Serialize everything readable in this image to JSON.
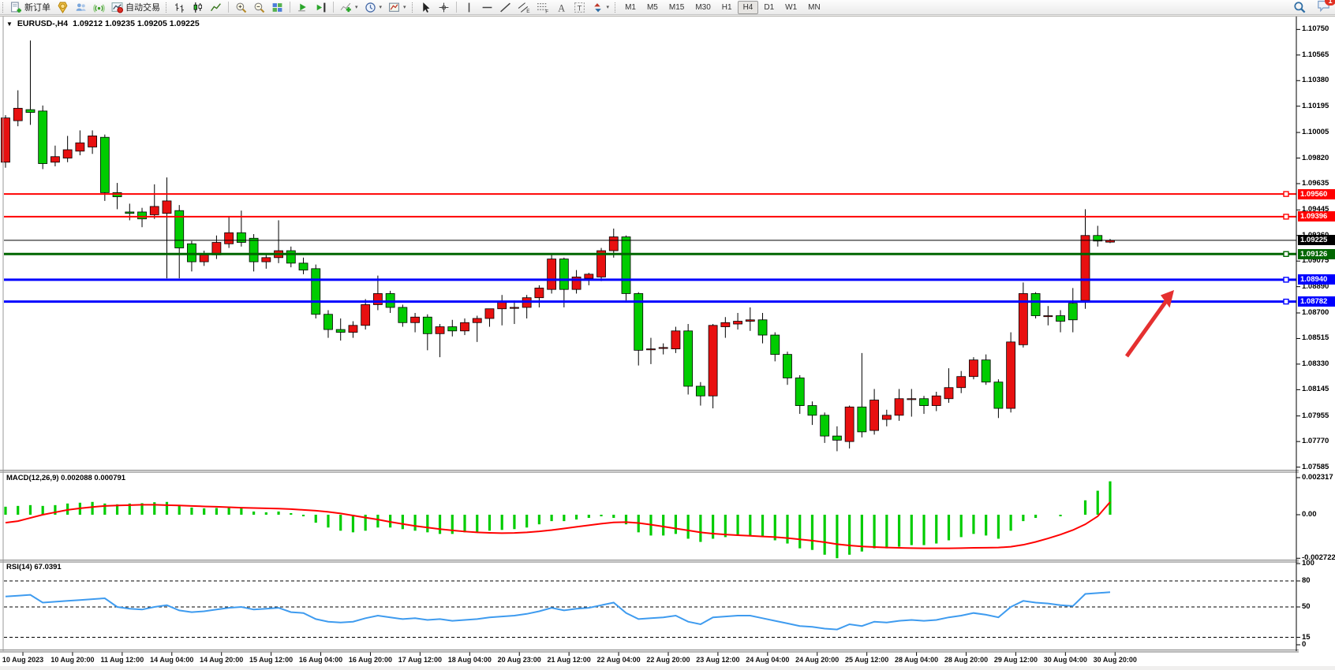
{
  "toolbar": {
    "new_order_label": "新订单",
    "autotrade_label": "自动交易",
    "timeframes": [
      "M1",
      "M5",
      "M15",
      "M30",
      "H1",
      "H4",
      "D1",
      "W1",
      "MN"
    ],
    "active_timeframe": "H4",
    "chat_badge": "1"
  },
  "chart": {
    "symbol_label": "EURUSD-,H4",
    "quote": "1.09212 1.09235 1.09205 1.09225",
    "colors": {
      "bull": "#e81010",
      "bear": "#00cc00",
      "wick": "#000000",
      "macd_hist": "#00cc00",
      "macd_signal": "#ff0000",
      "rsi_line": "#3e9bef",
      "arrow": "#e53030"
    },
    "hlines": [
      {
        "price": 1.0956,
        "label": "1.09560",
        "color": "#ff0000",
        "width": 2
      },
      {
        "price": 1.09396,
        "label": "1.09396",
        "color": "#ff0000",
        "width": 2
      },
      {
        "price": 1.09225,
        "label": "1.09225",
        "color": "#000000",
        "width": 1
      },
      {
        "price": 1.09126,
        "label": "1.09126",
        "color": "#006600",
        "width": 3
      },
      {
        "price": 1.0894,
        "label": "1.08940",
        "color": "#0000ff",
        "width": 3
      },
      {
        "price": 1.08782,
        "label": "1.08782",
        "color": "#0000ff",
        "width": 3
      }
    ],
    "price_ticks": [
      "1.10750",
      "1.10565",
      "1.10380",
      "1.10195",
      "1.10005",
      "1.09820",
      "1.09635",
      "1.09445",
      "1.09260",
      "1.09075",
      "1.08890",
      "1.08700",
      "1.08515",
      "1.08330",
      "1.08145",
      "1.07955",
      "1.07770",
      "1.07585"
    ],
    "time_labels": [
      "10 Aug 2023",
      "10 Aug 20:00",
      "11 Aug 12:00",
      "14 Aug 04:00",
      "14 Aug 20:00",
      "15 Aug 12:00",
      "16 Aug 04:00",
      "16 Aug 20:00",
      "17 Aug 12:00",
      "18 Aug 04:00",
      "20 Aug 23:00",
      "21 Aug 12:00",
      "22 Aug 04:00",
      "22 Aug 20:00",
      "23 Aug 12:00",
      "24 Aug 04:00",
      "24 Aug 20:00",
      "25 Aug 12:00",
      "28 Aug 04:00",
      "28 Aug 20:00",
      "29 Aug 12:00",
      "30 Aug 04:00",
      "30 Aug 20:00"
    ]
  },
  "chart_data": {
    "type": "candlestick",
    "symbol": "EURUSD",
    "timeframe": "H4",
    "ohlc": [
      [
        1.0979,
        1.1013,
        1.0975,
        1.1011
      ],
      [
        1.1009,
        1.1031,
        1.1005,
        1.1018
      ],
      [
        1.1017,
        1.1067,
        1.1006,
        1.1015
      ],
      [
        1.1016,
        1.102,
        1.0974,
        1.0978
      ],
      [
        1.0979,
        1.0991,
        1.0976,
        1.0983
      ],
      [
        1.0982,
        1.0998,
        1.0979,
        1.0988
      ],
      [
        1.0987,
        1.1002,
        1.0984,
        1.0993
      ],
      [
        1.099,
        1.1002,
        1.0985,
        1.0998
      ],
      [
        1.0997,
        1.0999,
        1.0951,
        1.0957
      ],
      [
        1.0957,
        1.0964,
        1.0945,
        1.0954
      ],
      [
        1.0943,
        1.0949,
        1.0937,
        1.0942
      ],
      [
        1.0943,
        1.0946,
        1.0932,
        1.0938
      ],
      [
        1.0941,
        1.0963,
        1.0938,
        1.0947
      ],
      [
        1.0942,
        1.0968,
        1.0895,
        1.0951
      ],
      [
        1.0944,
        1.0948,
        1.0895,
        1.0917
      ],
      [
        1.092,
        1.0922,
        1.09,
        1.0907
      ],
      [
        1.0907,
        1.0915,
        1.0904,
        1.0912
      ],
      [
        1.0912,
        1.0926,
        1.0909,
        1.0921
      ],
      [
        1.092,
        1.094,
        1.0917,
        1.0928
      ],
      [
        1.0928,
        1.0944,
        1.0918,
        1.0921
      ],
      [
        1.0924,
        1.0927,
        1.09,
        1.0907
      ],
      [
        1.0907,
        1.0913,
        1.0902,
        1.091
      ],
      [
        1.091,
        1.0937,
        1.0906,
        1.0915
      ],
      [
        1.0915,
        1.0918,
        1.0903,
        1.0906
      ],
      [
        1.0906,
        1.091,
        1.0898,
        1.0901
      ],
      [
        1.0902,
        1.0905,
        1.0866,
        1.0869
      ],
      [
        1.0869,
        1.0872,
        1.0852,
        1.0858
      ],
      [
        1.0858,
        1.0866,
        1.085,
        1.0856
      ],
      [
        1.0856,
        1.0864,
        1.0852,
        1.0861
      ],
      [
        1.0861,
        1.088,
        1.0858,
        1.0876
      ],
      [
        1.0876,
        1.0897,
        1.0872,
        1.0884
      ],
      [
        1.0884,
        1.0886,
        1.087,
        1.0874
      ],
      [
        1.0874,
        1.0876,
        1.086,
        1.0863
      ],
      [
        1.0863,
        1.087,
        1.0856,
        1.0867
      ],
      [
        1.0867,
        1.0869,
        1.0843,
        1.0855
      ],
      [
        1.0855,
        1.0862,
        1.0838,
        1.086
      ],
      [
        1.086,
        1.0865,
        1.0853,
        1.0857
      ],
      [
        1.0857,
        1.0866,
        1.0854,
        1.0863
      ],
      [
        1.0863,
        1.0868,
        1.0849,
        1.0866
      ],
      [
        1.0866,
        1.0872,
        1.086,
        1.0873
      ],
      [
        1.0873,
        1.0883,
        1.0861,
        1.0878
      ],
      [
        1.0874,
        1.0879,
        1.0862,
        1.0874
      ],
      [
        1.0874,
        1.0883,
        1.0866,
        1.0881
      ],
      [
        1.0881,
        1.089,
        1.0874,
        1.0888
      ],
      [
        1.0887,
        1.0913,
        1.0884,
        1.0909
      ],
      [
        1.0909,
        1.091,
        1.0874,
        1.0887
      ],
      [
        1.0887,
        1.0901,
        1.0884,
        1.0896
      ],
      [
        1.0895,
        1.0899,
        1.089,
        1.0898
      ],
      [
        1.0896,
        1.0917,
        1.0893,
        1.0915
      ],
      [
        1.0915,
        1.0931,
        1.091,
        1.0925
      ],
      [
        1.0925,
        1.0926,
        1.0879,
        1.0884
      ],
      [
        1.0884,
        1.0885,
        1.0832,
        1.0843
      ],
      [
        1.0844,
        1.0852,
        1.0833,
        1.0844
      ],
      [
        1.0845,
        1.0848,
        1.084,
        1.0845
      ],
      [
        1.0844,
        1.086,
        1.0841,
        1.0857
      ],
      [
        1.0857,
        1.0862,
        1.0811,
        1.0817
      ],
      [
        1.0817,
        1.082,
        1.0803,
        1.081
      ],
      [
        1.081,
        1.0862,
        1.0801,
        1.0861
      ],
      [
        1.086,
        1.0867,
        1.0852,
        1.0863
      ],
      [
        1.0862,
        1.087,
        1.0858,
        1.0864
      ],
      [
        1.0864,
        1.0874,
        1.0857,
        1.0865
      ],
      [
        1.0865,
        1.087,
        1.0848,
        1.0854
      ],
      [
        1.0854,
        1.0856,
        1.0835,
        1.084
      ],
      [
        1.084,
        1.0842,
        1.0818,
        1.0823
      ],
      [
        1.0823,
        1.0825,
        1.0797,
        1.0803
      ],
      [
        1.0803,
        1.0806,
        1.0789,
        1.0796
      ],
      [
        1.0796,
        1.0798,
        1.0776,
        1.0781
      ],
      [
        1.0781,
        1.0788,
        1.077,
        1.0778
      ],
      [
        1.0777,
        1.0803,
        1.0772,
        1.0802
      ],
      [
        1.0802,
        1.0841,
        1.078,
        1.0784
      ],
      [
        1.0785,
        1.0815,
        1.0782,
        1.0807
      ],
      [
        1.0793,
        1.08,
        1.0788,
        1.0796
      ],
      [
        1.0796,
        1.0815,
        1.0792,
        1.0808
      ],
      [
        1.0808,
        1.0815,
        1.0795,
        1.0808
      ],
      [
        1.0808,
        1.081,
        1.0797,
        1.0803
      ],
      [
        1.0803,
        1.0813,
        1.0799,
        1.081
      ],
      [
        1.0808,
        1.083,
        1.0805,
        1.0816
      ],
      [
        1.0816,
        1.0828,
        1.0812,
        1.0824
      ],
      [
        1.0824,
        1.0838,
        1.0822,
        1.0836
      ],
      [
        1.0836,
        1.084,
        1.0818,
        1.082
      ],
      [
        1.082,
        1.0822,
        1.0794,
        1.0801
      ],
      [
        1.0801,
        1.0856,
        1.0798,
        1.0849
      ],
      [
        1.0847,
        1.0892,
        1.0845,
        1.0884
      ],
      [
        1.0884,
        1.0885,
        1.0866,
        1.0868
      ],
      [
        1.0868,
        1.0875,
        1.0861,
        1.0868
      ],
      [
        1.0868,
        1.0872,
        1.0856,
        1.0864
      ],
      [
        1.0877,
        1.0888,
        1.0856,
        1.0865
      ],
      [
        1.0879,
        1.0945,
        1.0873,
        1.0926
      ],
      [
        1.0926,
        1.0933,
        1.0918,
        1.0922
      ],
      [
        1.09212,
        1.09235,
        1.09205,
        1.09225
      ]
    ],
    "indicators": {
      "macd": {
        "label": "MACD(12,26,9)",
        "values": "0.002088 0.000791",
        "axis": [
          "0.002317",
          "0.00",
          "-0.002722"
        ],
        "histogram": [
          0.0005,
          0.00055,
          0.0006,
          0.00055,
          0.0006,
          0.0007,
          0.00075,
          0.0008,
          0.0007,
          0.00065,
          0.0007,
          0.00072,
          0.00078,
          0.0008,
          0.0006,
          0.00045,
          0.0004,
          0.00042,
          0.00045,
          0.0004,
          0.0002,
          0.00015,
          0.0002,
          0.0001,
          -0.0001,
          -0.0005,
          -0.0008,
          -0.001,
          -0.0011,
          -0.001,
          -0.0008,
          -0.0008,
          -0.0009,
          -0.001,
          -0.0011,
          -0.0012,
          -0.0012,
          -0.0011,
          -0.0011,
          -0.001,
          -0.00095,
          -0.0009,
          -0.0008,
          -0.0006,
          -0.0004,
          -0.0004,
          -0.0003,
          -0.0002,
          -0.0001,
          -0.0002,
          -0.0006,
          -0.0011,
          -0.0013,
          -0.0013,
          -0.0012,
          -0.0015,
          -0.0017,
          -0.0015,
          -0.0014,
          -0.0013,
          -0.0013,
          -0.0014,
          -0.0016,
          -0.0018,
          -0.0021,
          -0.0022,
          -0.0025,
          -0.00272,
          -0.0025,
          -0.0023,
          -0.0021,
          -0.0021,
          -0.002,
          -0.0019,
          -0.0019,
          -0.0018,
          -0.0016,
          -0.0014,
          -0.0012,
          -0.0013,
          -0.0015,
          -0.001,
          -0.0004,
          -0.0002,
          0.0,
          -0.0001,
          0.0,
          0.0009,
          0.0015,
          0.002088
        ],
        "signal": [
          -0.0005,
          -0.0004,
          -0.0002,
          0,
          0.00015,
          0.0003,
          0.0004,
          0.00048,
          0.00055,
          0.00058,
          0.0006,
          0.00062,
          0.00062,
          0.0006,
          0.00058,
          0.00055,
          0.00052,
          0.0005,
          0.00047,
          0.00044,
          0.00042,
          0.0004,
          0.00038,
          0.00035,
          0.0003,
          0.00025,
          0.00018,
          8e-05,
          -5e-05,
          -0.00018,
          -0.0003,
          -0.00045,
          -0.00058,
          -0.0007,
          -0.0008,
          -0.0009,
          -0.00098,
          -0.00105,
          -0.0011,
          -0.00113,
          -0.00115,
          -0.00114,
          -0.0011,
          -0.00104,
          -0.00096,
          -0.00086,
          -0.00076,
          -0.00066,
          -0.00056,
          -0.00048,
          -0.00046,
          -0.00052,
          -0.00062,
          -0.00074,
          -0.00086,
          -0.00098,
          -0.0011,
          -0.00118,
          -0.00124,
          -0.00128,
          -0.00132,
          -0.00136,
          -0.0014,
          -0.00146,
          -0.00154,
          -0.00162,
          -0.00172,
          -0.00184,
          -0.00192,
          -0.00198,
          -0.00202,
          -0.00205,
          -0.00207,
          -0.00209,
          -0.0021,
          -0.0021,
          -0.0021,
          -0.00209,
          -0.00207,
          -0.00206,
          -0.00205,
          -0.002,
          -0.00188,
          -0.0017,
          -0.00148,
          -0.00124,
          -0.00096,
          -0.0006,
          -0.0001,
          0.000791
        ]
      },
      "rsi": {
        "label": "RSI(14)",
        "value": "67.0391",
        "axis": [
          "100",
          "80",
          "50",
          "15",
          "0"
        ],
        "levels": [
          80,
          50,
          15
        ],
        "line": [
          62,
          63,
          64,
          55,
          56,
          57,
          58,
          59,
          60,
          50,
          48,
          47,
          50,
          52,
          46,
          44,
          45,
          47,
          49,
          50,
          47,
          48,
          49,
          44,
          43,
          36,
          33,
          32,
          33,
          37,
          40,
          38,
          36,
          37,
          35,
          36,
          34,
          35,
          36,
          38,
          39,
          40,
          42,
          45,
          49,
          46,
          48,
          49,
          52,
          55,
          43,
          36,
          37,
          38,
          40,
          33,
          30,
          38,
          39,
          40,
          40,
          37,
          34,
          31,
          28,
          27,
          25,
          24,
          30,
          28,
          33,
          32,
          34,
          35,
          34,
          35,
          38,
          40,
          43,
          41,
          38,
          50,
          57,
          55,
          54,
          52,
          51,
          65,
          66,
          67.04
        ]
      }
    }
  },
  "annotation": {
    "type": "arrow",
    "color": "#e53030"
  }
}
